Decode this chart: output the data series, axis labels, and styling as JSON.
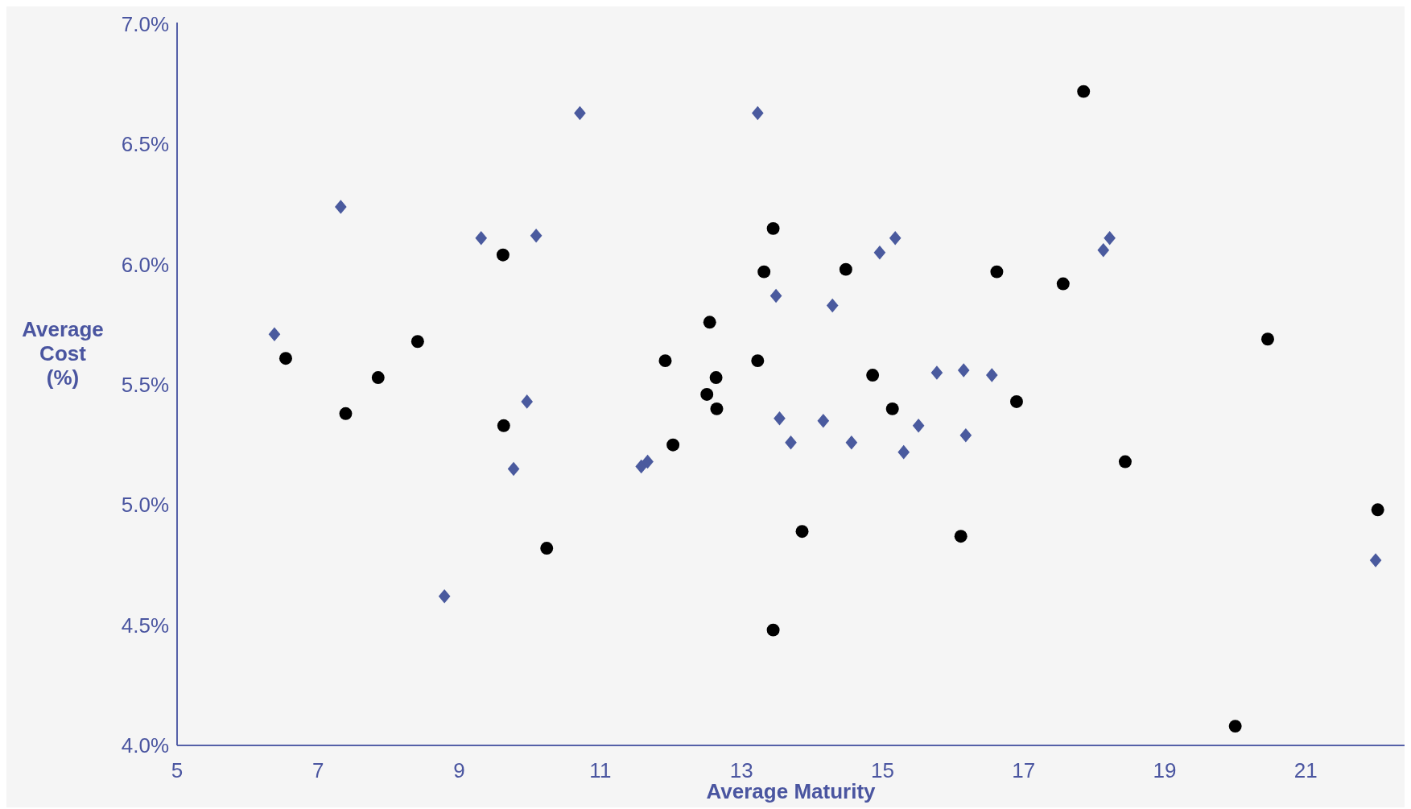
{
  "chart_data": {
    "type": "scatter",
    "xlabel": "Average Maturity",
    "ylabel": "Average Cost (%)",
    "xlim": [
      5,
      22.4
    ],
    "xticks": [
      5,
      7,
      9,
      11,
      13,
      15,
      17,
      19,
      21
    ],
    "ylim": [
      4.0,
      7.0
    ],
    "yticks": [
      {
        "value": 4.0,
        "label": "4.0%"
      },
      {
        "value": 4.5,
        "label": "4.5%"
      },
      {
        "value": 5.0,
        "label": "5.0%"
      },
      {
        "value": 5.5,
        "label": "5.5%"
      },
      {
        "value": 6.0,
        "label": "6.0%"
      },
      {
        "value": 6.5,
        "label": "6.5%"
      },
      {
        "value": 7.0,
        "label": "7.0%"
      }
    ],
    "grid": false,
    "series": [
      {
        "color": "#4a5a9e",
        "marker": "diamond",
        "x": [
          6.38,
          7.32,
          9.31,
          10.09,
          10.71,
          13.23,
          13.49,
          14.29,
          14.96,
          15.18,
          18.13,
          18.22,
          15.77,
          16.15,
          16.55,
          15.51,
          15.3,
          14.56,
          14.16,
          13.54,
          13.7,
          16.18,
          9.96,
          9.77,
          8.79,
          11.58,
          11.67,
          21.99
        ],
        "values": [
          5.71,
          6.24,
          6.11,
          6.12,
          6.63,
          6.63,
          5.87,
          5.83,
          6.05,
          6.11,
          6.06,
          6.11,
          5.55,
          5.56,
          5.54,
          5.33,
          5.22,
          5.26,
          5.35,
          5.36,
          5.26,
          5.29,
          5.43,
          5.15,
          4.62,
          5.16,
          5.18,
          4.77
        ]
      },
      {
        "color": "#000000",
        "marker": "circle",
        "x": [
          6.54,
          7.39,
          7.85,
          8.41,
          9.62,
          9.63,
          10.24,
          11.92,
          12.03,
          12.55,
          12.51,
          12.64,
          12.65,
          13.23,
          13.32,
          13.45,
          13.86,
          13.45,
          14.48,
          14.86,
          15.14,
          16.11,
          16.62,
          16.9,
          17.56,
          17.85,
          18.44,
          20.46,
          22.02,
          20.0
        ],
        "values": [
          5.61,
          5.38,
          5.53,
          5.68,
          6.04,
          5.33,
          4.82,
          5.6,
          5.25,
          5.76,
          5.46,
          5.53,
          5.4,
          5.6,
          5.97,
          6.15,
          4.89,
          4.48,
          5.98,
          5.54,
          5.4,
          4.87,
          5.97,
          5.43,
          5.92,
          6.72,
          5.18,
          5.69,
          4.98,
          4.08
        ]
      }
    ]
  }
}
